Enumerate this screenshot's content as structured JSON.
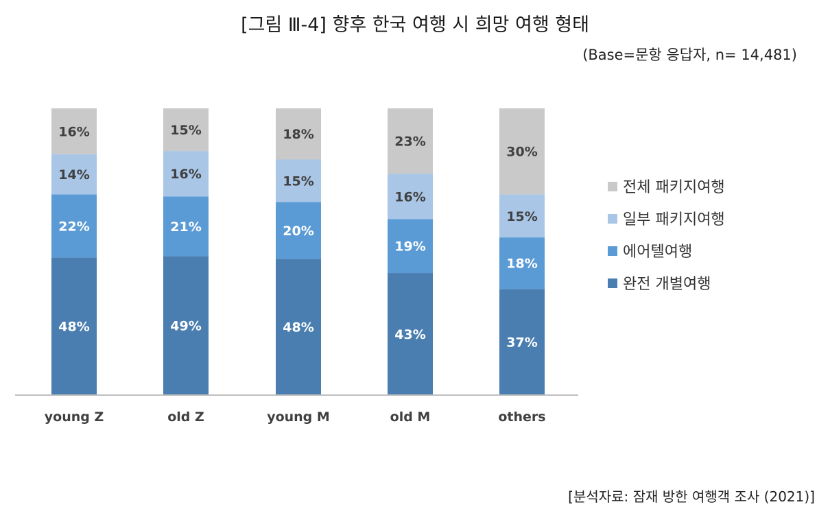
{
  "title": "[그림 Ⅲ-4] 향후 한국 여행 시 희망 여행 형태",
  "subtitle": "(Base=문항 응답자, n= 14,481)",
  "source": "[분석자료: 잠재 방한 여행객 조사 (2021)]",
  "chart_data": {
    "type": "bar",
    "stacked": true,
    "percent_labels": true,
    "categories": [
      "young Z",
      "old Z",
      "young M",
      "old M",
      "others"
    ],
    "series": [
      {
        "name": "완전 개별여행",
        "color": "#4a7eb0",
        "label_color": "#ffffff",
        "values": [
          48,
          49,
          48,
          43,
          37
        ]
      },
      {
        "name": "에어텔여행",
        "color": "#5b9bd5",
        "label_color": "#ffffff",
        "values": [
          22,
          21,
          20,
          19,
          18
        ]
      },
      {
        "name": "일부 패키지여행",
        "color": "#a9c6e6",
        "label_color": "#404040",
        "values": [
          14,
          16,
          15,
          16,
          15
        ]
      },
      {
        "name": "전체 패키지여행",
        "color": "#c9c9c9",
        "label_color": "#404040",
        "values": [
          16,
          15,
          18,
          23,
          30
        ]
      }
    ],
    "legend_position": "right",
    "legend_order": [
      "전체 패키지여행",
      "일부 패키지여행",
      "에어텔여행",
      "완전 개별여행"
    ],
    "ylim": [
      0,
      100
    ],
    "grid": false
  }
}
